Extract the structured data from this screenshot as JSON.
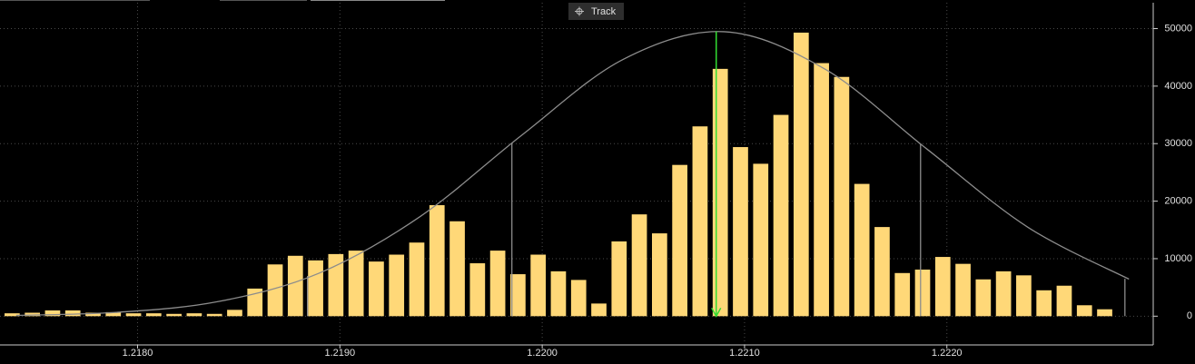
{
  "toolbar": {
    "button": "Track"
  },
  "chart_data": {
    "type": "histogram",
    "x": [
      1.21738,
      1.21748,
      1.21758,
      1.21768,
      1.21778,
      1.21788,
      1.21798,
      1.21808,
      1.21818,
      1.21828,
      1.21838,
      1.21848,
      1.21858,
      1.21868,
      1.21878,
      1.21888,
      1.21898,
      1.21908,
      1.21918,
      1.21928,
      1.21938,
      1.21948,
      1.21958,
      1.21968,
      1.21978,
      1.21988,
      1.21998,
      1.22008,
      1.22018,
      1.22028,
      1.22038,
      1.22048,
      1.22058,
      1.22068,
      1.22078,
      1.22088,
      1.22098,
      1.22108,
      1.22118,
      1.22128,
      1.22138,
      1.22148,
      1.22158,
      1.22168,
      1.22178,
      1.22188,
      1.22198,
      1.22208,
      1.22218,
      1.22228,
      1.22238,
      1.22248,
      1.22258,
      1.22268,
      1.22278
    ],
    "values": [
      500,
      600,
      1000,
      1000,
      600,
      700,
      500,
      500,
      400,
      500,
      400,
      1100,
      4800,
      9000,
      10500,
      9700,
      10800,
      11400,
      9500,
      10700,
      12800,
      19300,
      16500,
      9200,
      11400,
      7300,
      10700,
      7800,
      6300,
      2200,
      13000,
      17700,
      14400,
      26300,
      33000,
      43000,
      29400,
      26500,
      35000,
      49300,
      44000,
      41600,
      23000,
      15500,
      7500,
      8100,
      10300,
      9100,
      6400,
      7800,
      7100,
      4500,
      5300,
      1900,
      1200
    ],
    "color": "#ffd878",
    "curve": {
      "color": "#8c8c8c",
      "x": [
        1.2174,
        1.2179,
        1.2184,
        1.2189,
        1.2194,
        1.2199,
        1.2204,
        1.2209,
        1.2214,
        1.2219,
        1.2224,
        1.2229
      ],
      "values": [
        140,
        675,
        2550,
        7520,
        17400,
        31500,
        44650,
        49460,
        42900,
        29100,
        15470,
        6440
      ]
    },
    "sigma_lines": {
      "x": [
        1.21884,
        1.21985,
        1.22187,
        1.22288
      ],
      "values": [
        7000,
        30000,
        30000,
        6500
      ]
    },
    "mean_line": {
      "x": 1.22086,
      "value": 49500,
      "color": "#33dd33"
    },
    "xlim": [
      1.21732,
      1.22302
    ],
    "ylim": [
      -5000,
      54500
    ],
    "xticks": [
      {
        "value": 1.218,
        "label": "1.2180"
      },
      {
        "value": 1.219,
        "label": "1.2190"
      },
      {
        "value": 1.22,
        "label": "1.2200"
      },
      {
        "value": 1.221,
        "label": "1.2210"
      },
      {
        "value": 1.222,
        "label": "1.2220"
      }
    ],
    "yticks": [
      0,
      10000,
      20000,
      30000,
      40000,
      50000
    ],
    "grid": true
  }
}
